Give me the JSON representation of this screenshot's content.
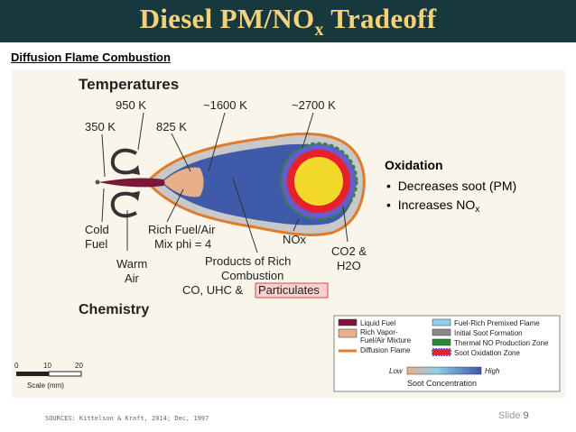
{
  "slide": {
    "title_main": "Diesel PM/NO",
    "title_sub": "x",
    "title_end": " Tradeoff",
    "subheading": "Diffusion Flame Combustion",
    "sources": "SOURCES: Kittelson & Kraft, 2014; Dec, 1997",
    "slide_label": "Slide",
    "slide_number": "9"
  },
  "oxidation": {
    "heading": "Oxidation",
    "bullet_1": "Decreases soot (PM)",
    "bullet_2_main": "Increases NO",
    "bullet_2_sub": "x",
    "bullet_symbol": "•"
  },
  "diagram": {
    "temperatures_heading": "Temperatures",
    "chemistry_heading": "Chemistry",
    "temps": {
      "t350": "350 K",
      "t950": "950 K",
      "t825": "825 K",
      "t1600": "~1600 K",
      "t2700": "~2700 K"
    },
    "labels": {
      "cold": "Cold",
      "fuel": "Fuel",
      "warm": "Warm",
      "air": "Air",
      "rich_line1": "Rich Fuel/Air",
      "rich_line2": "Mix phi = 4",
      "nox": "NOx",
      "co2": "CO2 &",
      "h2o": "H2O",
      "products_line1": "Products of Rich",
      "products_line2": "Combustion",
      "products_line3": "CO, UHC & ",
      "particulates": "Particulates"
    },
    "scale": {
      "tick_0": "0",
      "tick_10": "10",
      "tick_20": "20",
      "label": "Scale (mm)"
    },
    "legend": {
      "liquid_fuel": "Liquid Fuel",
      "rich_vapor_1": "Rich Vapor-",
      "rich_vapor_2": "Fuel/Air Mixture",
      "diffusion_flame": "Diffusion Flame",
      "premixed_flame": "Fuel-Rich Premixed Flame",
      "initial_soot": "Initial Soot Formation",
      "thermal_no": "Thermal NO Production Zone",
      "soot_oxidation": "Soot Oxidation Zone",
      "low": "Low",
      "high": "High",
      "soot_concentration": "Soot Concentration"
    },
    "colors": {
      "liquid_fuel": "#7a1838",
      "rich_vapor": "#e8b08a",
      "diffusion_flame": "#e07b2a",
      "premixed_flame": "#8fd0e8",
      "initial_soot": "#8a8a8a",
      "thermal_no": "#2a8a3a",
      "soot_oxidation": "#6a5acd",
      "soot_core": "#3e5aa8",
      "flame_hot": "#f2d92c",
      "flame_red": "#e8202a"
    }
  }
}
